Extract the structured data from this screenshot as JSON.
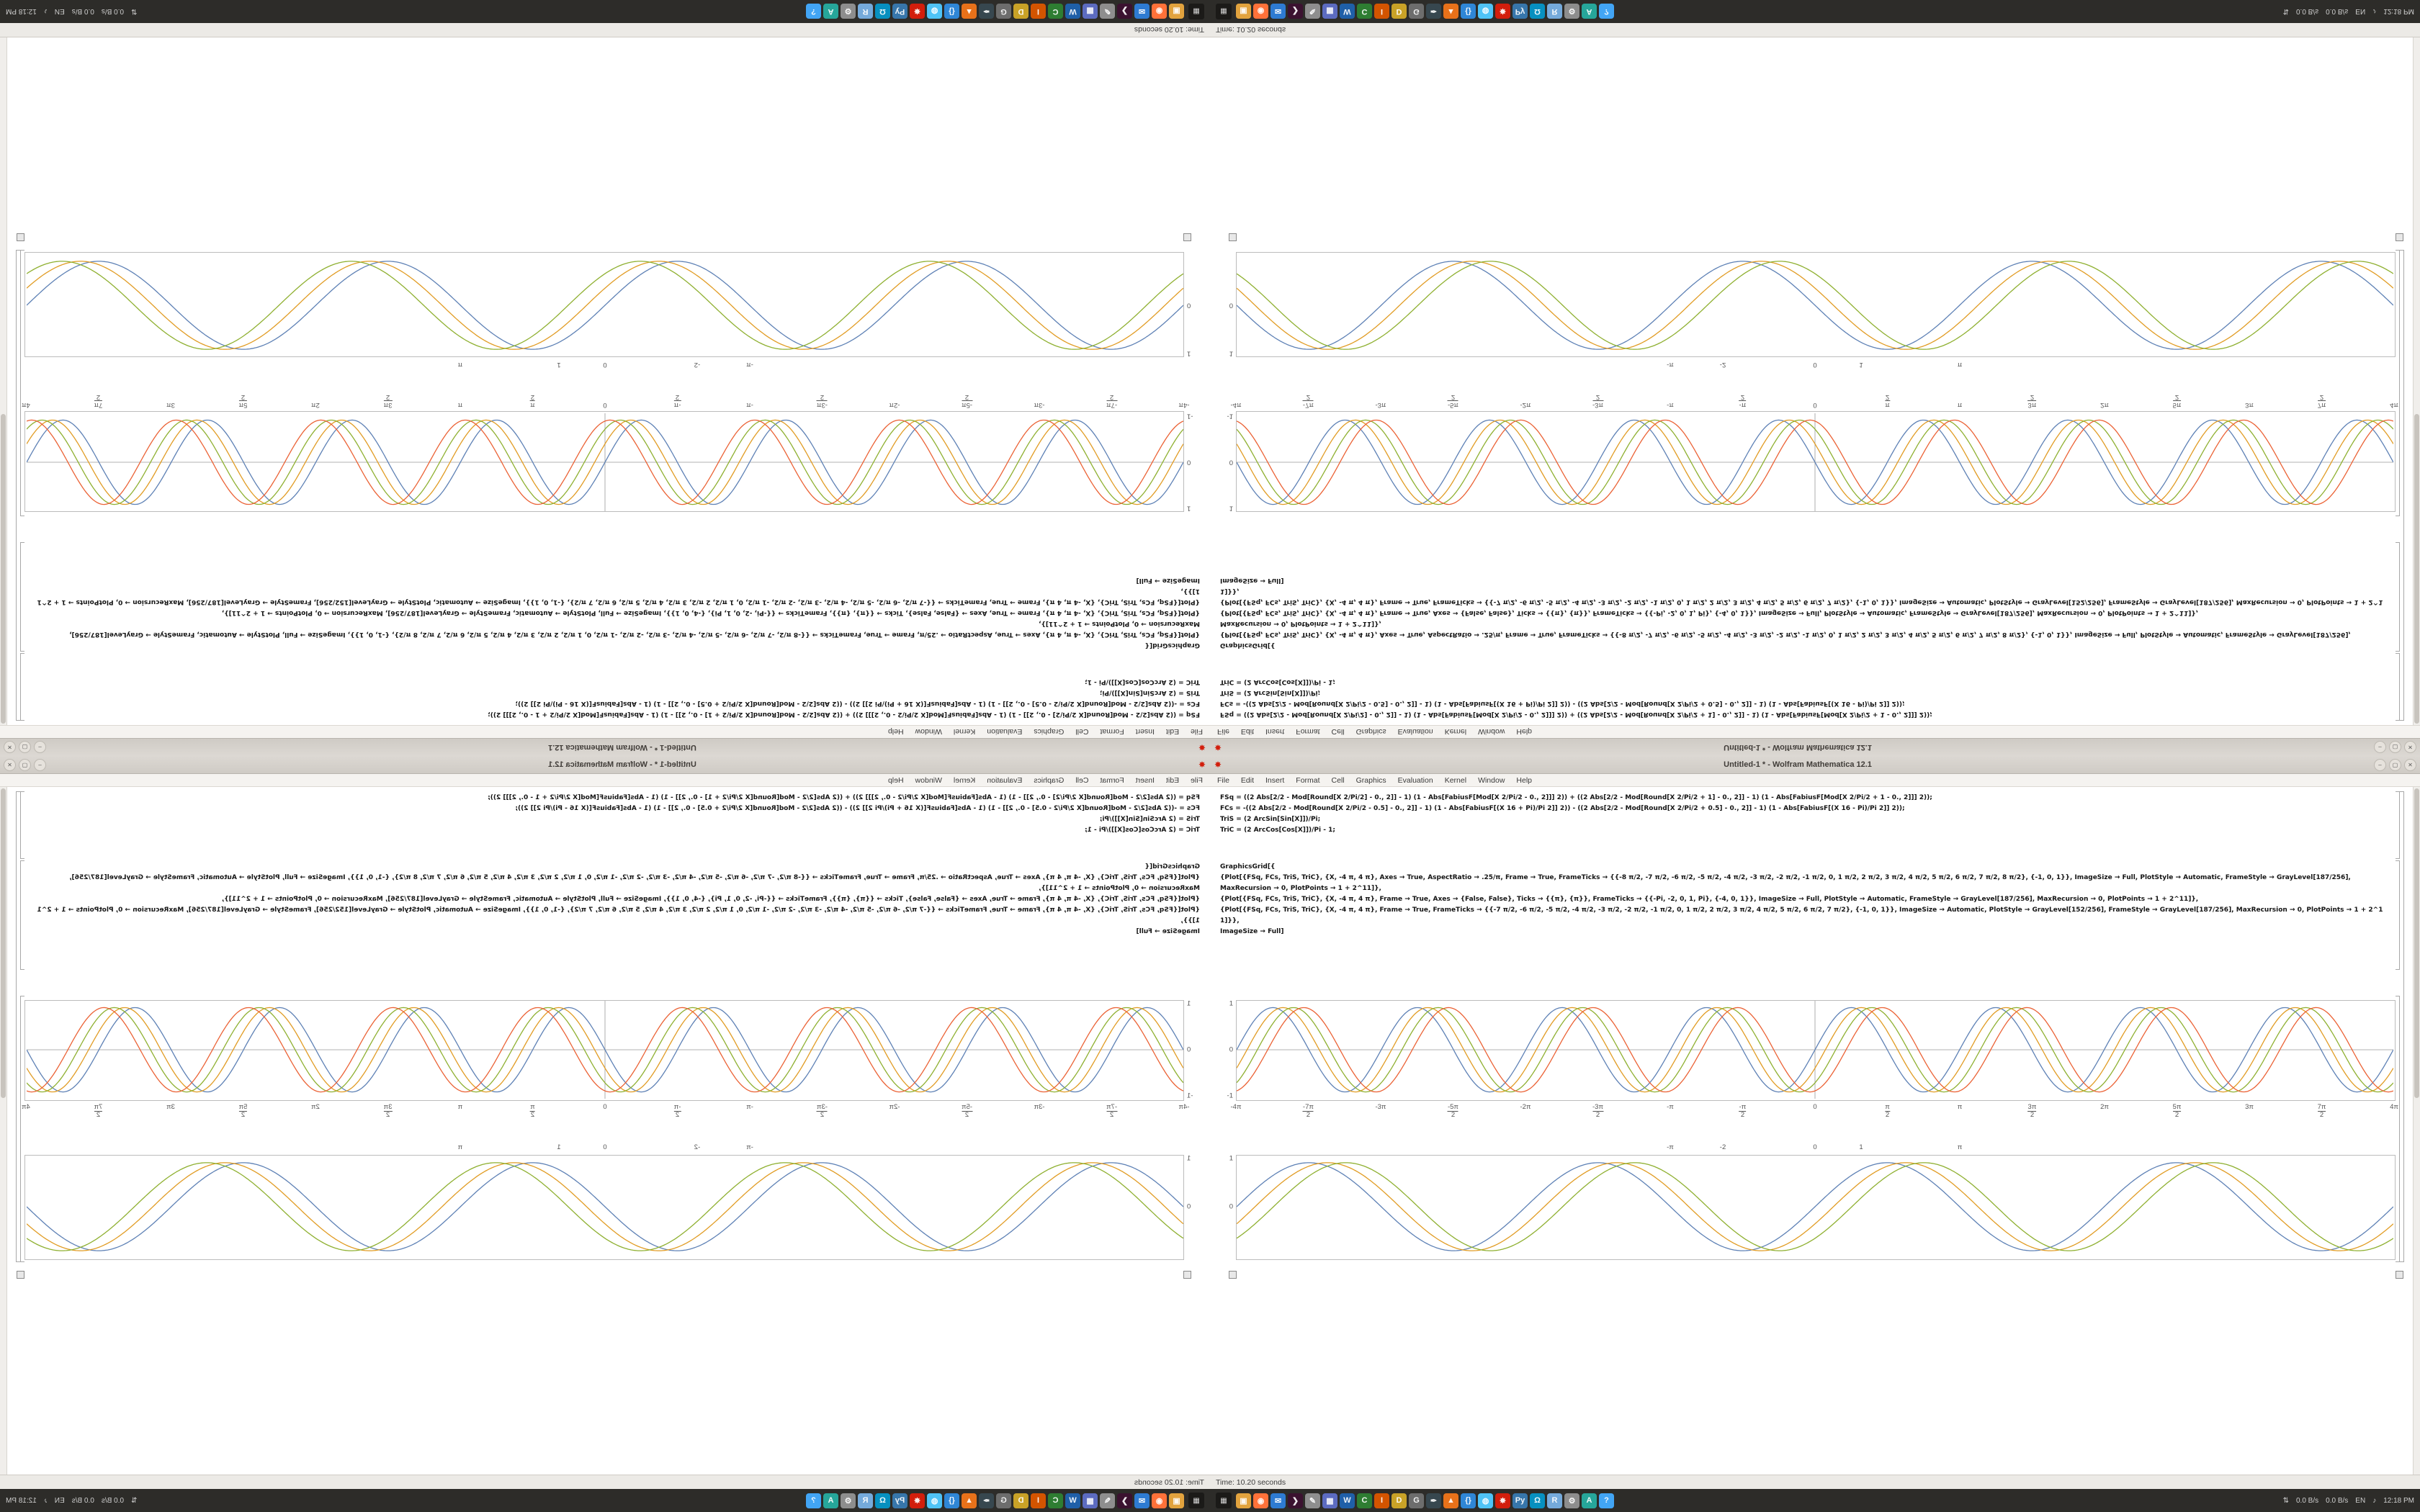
{
  "window": {
    "title": "Untitled-1 * - Wolfram Mathematica 12.1",
    "app_icon_glyph": "✸",
    "controls": [
      {
        "name": "minimize-button",
        "glyph": "–"
      },
      {
        "name": "maximize-button",
        "glyph": "▢"
      },
      {
        "name": "close-button",
        "glyph": "✕"
      }
    ],
    "menu": [
      "File",
      "Edit",
      "Insert",
      "Format",
      "Cell",
      "Graphics",
      "Evaluation",
      "Kernel",
      "Window",
      "Help"
    ],
    "status_left": "Time: 10.20 seconds"
  },
  "notebook": {
    "cell1_lines": [
      "FSq = ((2 Abs[2/2 - Mod[Round[X 2/Pi/2] - 0., 2]] - 1) (1 - Abs[FabiusF[Mod[X 2/Pi/2 - 0., 2]]] 2)) + ((2 Abs[2/2 - Mod[Round[X 2/Pi/2 + 1] - 0., 2]] - 1) (1 - Abs[FabiusF[Mod[X 2/Pi/2 + 1 - 0., 2]]] 2));",
      "FCs = -((2 Abs[2/2 - Mod[Round[X 2/Pi/2 - 0.5] - 0., 2]] - 1) (1 - Abs[FabiusF[(X 16 + Pi)/Pi 2]] 2)) - ((2 Abs[2/2 - Mod[Round[X 2/Pi/2 + 0.5] - 0., 2]] - 1) (1 - Abs[FabiusF[(X 16 - Pi)/Pi 2]] 2));",
      "TriS = (2 ArcSin[Sin[X]])/Pi;",
      "TriC = (2 ArcCos[Cos[X]])/Pi - 1;"
    ],
    "cell2_lines": [
      "GraphicsGrid[{",
      "  {Plot[{FSq, FCs, TriS, TriC}, {X, -4 π, 4 π}, Axes → True, AspectRatio → .25/π, Frame → True, FrameTicks → {{-8 π/2, -7 π/2, -6 π/2, -5 π/2, -4 π/2, -3 π/2, -2 π/2, -1 π/2, 0, 1 π/2, 2 π/2, 3 π/2, 4 π/2, 5 π/2, 6 π/2, 7 π/2, 8 π/2}, {-1, 0, 1}}, ImageSize → Full, PlotStyle → Automatic, FrameStyle → GrayLevel[187/256],",
      "   MaxRecursion → 0, PlotPoints → 1 + 2^11]},",
      "  {Plot[{FSq, FCs, TriS, TriC}, {X, -4 π, 4 π}, Frame → True, Axes → {False, False}, Ticks → {{π}, {π}}, FrameTicks → {{-Pi, -2, 0, 1, Pi}, {-4, 0, 1}}, ImageSize → Full, PlotStyle → Automatic, FrameStyle → GrayLevel[187/256], MaxRecursion → 0, PlotPoints → 1 + 2^11]},",
      "  {Plot[{FSq, FCs, TriS, TriC}, {X, -4 π, 4 π}, Frame → True, FrameTicks → {{-7 π/2, -6 π/2, -5 π/2, -4 π/2, -3 π/2, -2 π/2, -1 π/2, 0, 1 π/2, 2 π/2, 3 π/2, 4 π/2, 5 π/2, 6 π/2, 7 π/2}, {-1, 0, 1}}, ImageSize → Automatic, PlotStyle → GrayLevel[152/256], FrameStyle → GrayLevel[187/256], MaxRecursion → 0, PlotPoints → 1 + 2^11]}},",
      " ImageSize → Full]"
    ]
  },
  "chart_data": [
    {
      "type": "line",
      "title": "sine approximations (square / Fabius / triangle waves)",
      "x_range": [
        -12.566,
        12.566
      ],
      "y_range": [
        -1.08,
        1.08
      ],
      "axes": true,
      "frame": true,
      "frame_color": "#bcbcbc",
      "series": [
        {
          "name": "FSq",
          "color": "#5e81b5",
          "freq": 2,
          "phase": 0,
          "amp": 0.93
        },
        {
          "name": "FCs",
          "color": "#e19c24",
          "freq": 2,
          "phase": 0.45,
          "amp": 0.93
        },
        {
          "name": "TriS",
          "color": "#8fb031",
          "freq": 2,
          "phase": 0.9,
          "amp": 0.93
        },
        {
          "name": "TriC",
          "color": "#eb6235",
          "freq": 2,
          "phase": 1.35,
          "amp": 0.93
        }
      ],
      "x_ticks": [
        {
          "v": -12.566,
          "l": "-4π"
        },
        {
          "v": -10.996,
          "l": "-7π/2"
        },
        {
          "v": -9.425,
          "l": "-3π"
        },
        {
          "v": -7.854,
          "l": "-5π/2"
        },
        {
          "v": -6.283,
          "l": "-2π"
        },
        {
          "v": -4.712,
          "l": "-3π/2"
        },
        {
          "v": -3.1416,
          "l": "-π"
        },
        {
          "v": -1.5708,
          "l": "-π/2"
        },
        {
          "v": 0,
          "l": "0"
        },
        {
          "v": 1.5708,
          "l": "π/2"
        },
        {
          "v": 3.1416,
          "l": "π"
        },
        {
          "v": 4.712,
          "l": "3π/2"
        },
        {
          "v": 6.283,
          "l": "2π"
        },
        {
          "v": 7.854,
          "l": "5π/2"
        },
        {
          "v": 9.425,
          "l": "3π"
        },
        {
          "v": 10.996,
          "l": "7π/2"
        },
        {
          "v": 12.566,
          "l": "4π"
        }
      ],
      "y_ticks": [
        {
          "v": -1,
          "l": "-1"
        },
        {
          "v": 0,
          "l": "0"
        },
        {
          "v": 1,
          "l": "1"
        }
      ]
    },
    {
      "type": "line",
      "title": "sine approximations strip plot",
      "x_range": [
        -12.566,
        12.566
      ],
      "y_range": [
        -1.08,
        1.08
      ],
      "axes": false,
      "frame": true,
      "frame_color": "#bcbcbc",
      "series": [
        {
          "name": "FSq",
          "color": "#5e81b5",
          "freq": 1,
          "phase": 0,
          "amp": 0.93
        },
        {
          "name": "FCs",
          "color": "#e19c24",
          "freq": 1,
          "phase": 0.4,
          "amp": 0.93
        },
        {
          "name": "TriS",
          "color": "#8fb031",
          "freq": 1,
          "phase": 0.8,
          "amp": 0.93
        }
      ],
      "x_ticks": [
        {
          "v": -3.1416,
          "l": "-π"
        },
        {
          "v": -2,
          "l": "-2"
        },
        {
          "v": 0,
          "l": "0"
        },
        {
          "v": 1,
          "l": "1"
        },
        {
          "v": 3.1416,
          "l": "π"
        }
      ],
      "y_ticks": [
        {
          "v": 0,
          "l": "0"
        },
        {
          "v": 1,
          "l": "1"
        }
      ]
    }
  ],
  "taskbar": {
    "app_button_glyph": "▦",
    "launcher": [
      {
        "name": "taskbar-app-icon-files",
        "glyph": "▣",
        "color": "#e2a33e"
      },
      {
        "name": "taskbar-app-icon-firefox",
        "glyph": "◉",
        "color": "#ff7139"
      },
      {
        "name": "taskbar-app-icon-thunderbird",
        "glyph": "✉",
        "color": "#2e7bd2"
      },
      {
        "name": "taskbar-app-icon-terminal",
        "glyph": "❯",
        "color": "#3b1230"
      },
      {
        "name": "taskbar-app-icon-text-editor",
        "glyph": "✎",
        "color": "#8e8e8e"
      },
      {
        "name": "taskbar-app-icon-calculator",
        "glyph": "▦",
        "color": "#5c6bc0"
      },
      {
        "name": "taskbar-app-icon-writer",
        "glyph": "W",
        "color": "#1f5fa8"
      },
      {
        "name": "taskbar-app-icon-calc",
        "glyph": "C",
        "color": "#2e7d32"
      },
      {
        "name": "taskbar-app-icon-impress",
        "glyph": "I",
        "color": "#d35400"
      },
      {
        "name": "taskbar-app-icon-draw",
        "glyph": "D",
        "color": "#c9a227"
      },
      {
        "name": "taskbar-app-icon-gimp",
        "glyph": "G",
        "color": "#6d6d6d"
      },
      {
        "name": "taskbar-app-icon-inkscape",
        "glyph": "✒",
        "color": "#37474f"
      },
      {
        "name": "taskbar-app-icon-vlc",
        "glyph": "▲",
        "color": "#e8711a"
      },
      {
        "name": "taskbar-app-icon-code",
        "glyph": "{}",
        "color": "#2f86d6"
      },
      {
        "name": "taskbar-app-icon-chromium",
        "glyph": "◍",
        "color": "#4fc3f7"
      },
      {
        "name": "taskbar-app-icon-mathematica",
        "glyph": "✸",
        "color": "#d21e0c"
      },
      {
        "name": "taskbar-app-icon-python",
        "glyph": "Py",
        "color": "#3776ab"
      },
      {
        "name": "taskbar-app-icon-octave",
        "glyph": "Ω",
        "color": "#0790c0"
      },
      {
        "name": "taskbar-app-icon-rstudio",
        "glyph": "R",
        "color": "#75aadb"
      },
      {
        "name": "taskbar-app-icon-settings",
        "glyph": "⚙",
        "color": "#8d8d8d"
      },
      {
        "name": "taskbar-app-icon-software",
        "glyph": "A",
        "color": "#26a69a"
      },
      {
        "name": "taskbar-app-icon-help",
        "glyph": "?",
        "color": "#42a5f5"
      }
    ],
    "tray": [
      {
        "name": "network-updown-icon",
        "label": "⇅"
      },
      {
        "name": "net-up-label",
        "label": "0.0 B/s"
      },
      {
        "name": "net-down-label",
        "label": "0.0 B/s"
      },
      {
        "name": "keyboard-layout-label",
        "label": "EN"
      },
      {
        "name": "volume-icon",
        "label": "♪"
      },
      {
        "name": "clock-label",
        "label": "12:18 PM"
      }
    ]
  },
  "colors": {
    "titlebar_bg": "#d8d4cf",
    "taskbar_bg": "#2d2c29",
    "frame_gray": "#bcbcbc",
    "series_blue": "#5e81b5",
    "series_yellow": "#e19c24",
    "series_green": "#8fb031",
    "series_red": "#eb6235",
    "mathematica_red": "#d21e0c"
  }
}
